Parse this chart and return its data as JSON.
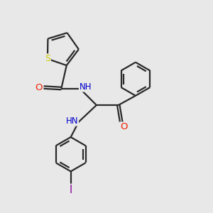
{
  "background_color": "#e8e8e8",
  "bond_color": "#2a2a2a",
  "bond_width": 1.6,
  "atom_colors": {
    "S": "#cccc00",
    "O": "#ee2200",
    "N": "#0000cc",
    "I": "#880099",
    "C": "#2a2a2a"
  },
  "font_size": 8.5,
  "fig_width": 3.0,
  "fig_height": 3.0,
  "dpi": 100,
  "xlim": [
    0,
    10
  ],
  "ylim": [
    0,
    10
  ]
}
